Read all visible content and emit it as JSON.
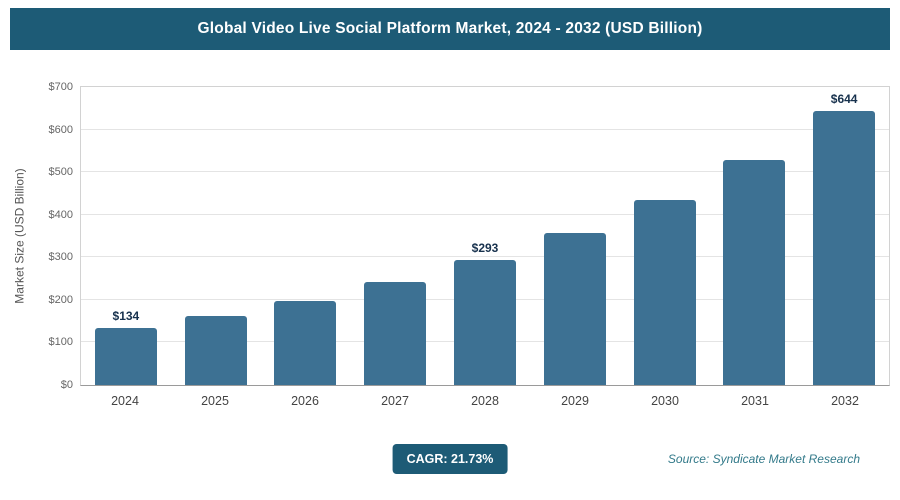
{
  "header": {
    "title": "Global Video Live Social Platform Market, 2024 - 2032 (USD Billion)"
  },
  "chart_data": {
    "type": "bar",
    "title": "Global Video Live Social Platform Market, 2024 - 2032 (USD Billion)",
    "categories": [
      "2024",
      "2025",
      "2026",
      "2027",
      "2028",
      "2029",
      "2030",
      "2031",
      "2032"
    ],
    "values": [
      134,
      163,
      198,
      242,
      293,
      357,
      434,
      529,
      644
    ],
    "data_labels": [
      "$134",
      "",
      "",
      "",
      "$293",
      "",
      "",
      "",
      "$644"
    ],
    "xlabel": "",
    "ylabel": "Market Size (USD Billion)",
    "ylim": [
      0,
      700
    ],
    "ytick_step": 100,
    "ytick_prefix": "$",
    "grid": true,
    "legend_position": "none",
    "bar_color": "#3d7193"
  },
  "footer": {
    "cagr_label": "CAGR: 21.73%",
    "source": "Source: Syndicate Market Research"
  }
}
